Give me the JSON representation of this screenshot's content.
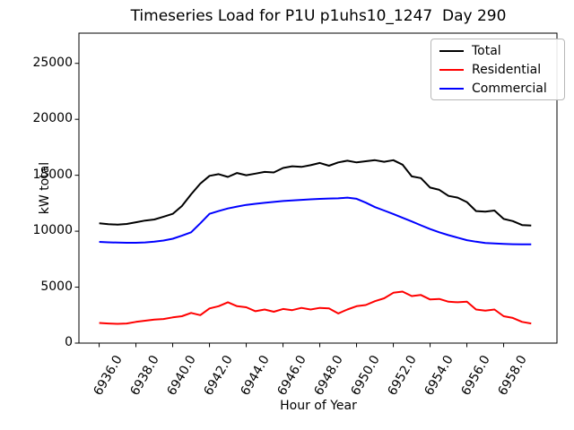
{
  "chart_data": {
    "type": "line",
    "title": "Timeseries Load for P1U p1uhs10_1247  Day 290",
    "xlabel": "Hour of Year",
    "ylabel": "kW total",
    "xlim": [
      6934.9,
      6960.9
    ],
    "ylim": [
      0,
      27700
    ],
    "grid": false,
    "legend_position": "upper right",
    "xticks": [
      6936,
      6938,
      6940,
      6942,
      6944,
      6946,
      6948,
      6950,
      6952,
      6954,
      6956,
      6958
    ],
    "xtick_labels": [
      "6936.0",
      "6938.0",
      "6940.0",
      "6942.0",
      "6944.0",
      "6946.0",
      "6948.0",
      "6950.0",
      "6952.0",
      "6954.0",
      "6956.0",
      "6958.0"
    ],
    "yticks": [
      0,
      5000,
      10000,
      15000,
      20000,
      25000
    ],
    "ytick_labels": [
      "0",
      "5000",
      "10000",
      "15000",
      "20000",
      "25000"
    ],
    "x": [
      6936.0,
      6936.5,
      6937.0,
      6937.5,
      6938.0,
      6938.5,
      6939.0,
      6939.5,
      6940.0,
      6940.5,
      6941.0,
      6941.5,
      6942.0,
      6942.5,
      6943.0,
      6943.5,
      6944.0,
      6944.5,
      6945.0,
      6945.5,
      6946.0,
      6946.5,
      6947.0,
      6947.5,
      6948.0,
      6948.5,
      6949.0,
      6949.5,
      6950.0,
      6950.5,
      6951.0,
      6951.5,
      6952.0,
      6952.5,
      6953.0,
      6953.5,
      6954.0,
      6954.5,
      6955.0,
      6955.5,
      6956.0,
      6956.5,
      6957.0,
      6957.5,
      6958.0,
      6958.5,
      6959.0,
      6959.5
    ],
    "series": [
      {
        "name": "Total",
        "color": "#000000",
        "values": [
          10700,
          10620,
          10590,
          10650,
          10800,
          10950,
          11050,
          11300,
          11550,
          12250,
          13300,
          14250,
          14950,
          15100,
          14850,
          15200,
          15000,
          15150,
          15300,
          15250,
          15650,
          15800,
          15750,
          15900,
          16100,
          15850,
          16150,
          16300,
          16150,
          16250,
          16350,
          16200,
          16350,
          15950,
          14900,
          14750,
          13900,
          13700,
          13150,
          13000,
          12600,
          11800,
          11750,
          11850,
          11100,
          10900,
          10550,
          10500
        ]
      },
      {
        "name": "Residential",
        "color": "#ff0000",
        "values": [
          1800,
          1750,
          1720,
          1750,
          1900,
          2000,
          2100,
          2150,
          2300,
          2400,
          2700,
          2500,
          3100,
          3300,
          3650,
          3300,
          3200,
          2850,
          3000,
          2800,
          3050,
          2950,
          3150,
          3000,
          3150,
          3100,
          2650,
          3000,
          3300,
          3400,
          3750,
          4000,
          4500,
          4600,
          4200,
          4300,
          3900,
          3950,
          3700,
          3650,
          3700,
          3000,
          2900,
          3000,
          2400,
          2250,
          1900,
          1750
        ]
      },
      {
        "name": "Commercial",
        "color": "#0000ff",
        "values": [
          9050,
          9010,
          8980,
          8970,
          8970,
          9000,
          9060,
          9170,
          9330,
          9600,
          9900,
          10700,
          11550,
          11800,
          12030,
          12200,
          12350,
          12450,
          12540,
          12620,
          12700,
          12750,
          12800,
          12850,
          12890,
          12920,
          12940,
          13000,
          12900,
          12550,
          12150,
          11850,
          11540,
          11200,
          10870,
          10530,
          10190,
          9900,
          9650,
          9420,
          9200,
          9060,
          8950,
          8900,
          8860,
          8840,
          8830,
          8820
        ]
      }
    ]
  }
}
